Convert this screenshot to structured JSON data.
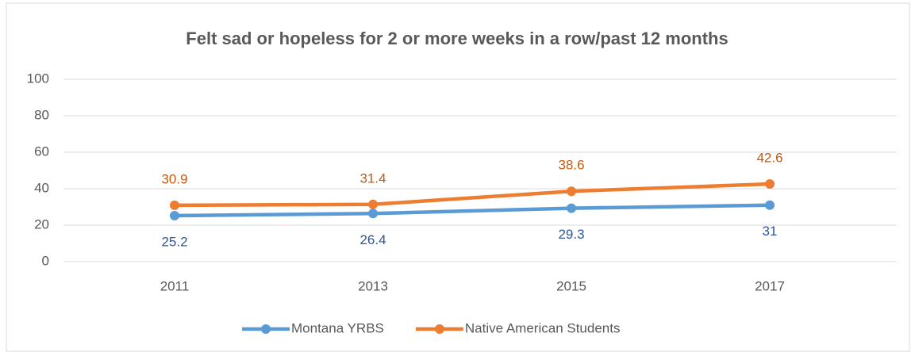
{
  "chart_data": {
    "type": "line",
    "title": "Felt sad or hopeless for 2 or more weeks in a row/past 12 months",
    "categories": [
      "2011",
      "2013",
      "2015",
      "2017"
    ],
    "series": [
      {
        "name": "Montana YRBS",
        "color": "#5b9bd5",
        "label_color": "#2f5597",
        "label_position": "below",
        "values": [
          25.2,
          26.4,
          29.3,
          31
        ]
      },
      {
        "name": "Native American Students",
        "color": "#ed7d31",
        "label_color": "#c55a11",
        "label_position": "above",
        "values": [
          30.9,
          31.4,
          38.6,
          42.6
        ]
      }
    ],
    "ylim": [
      0,
      100
    ],
    "yticks": [
      0,
      20,
      40,
      60,
      80,
      100
    ],
    "grid": true,
    "legend": "bottom"
  }
}
